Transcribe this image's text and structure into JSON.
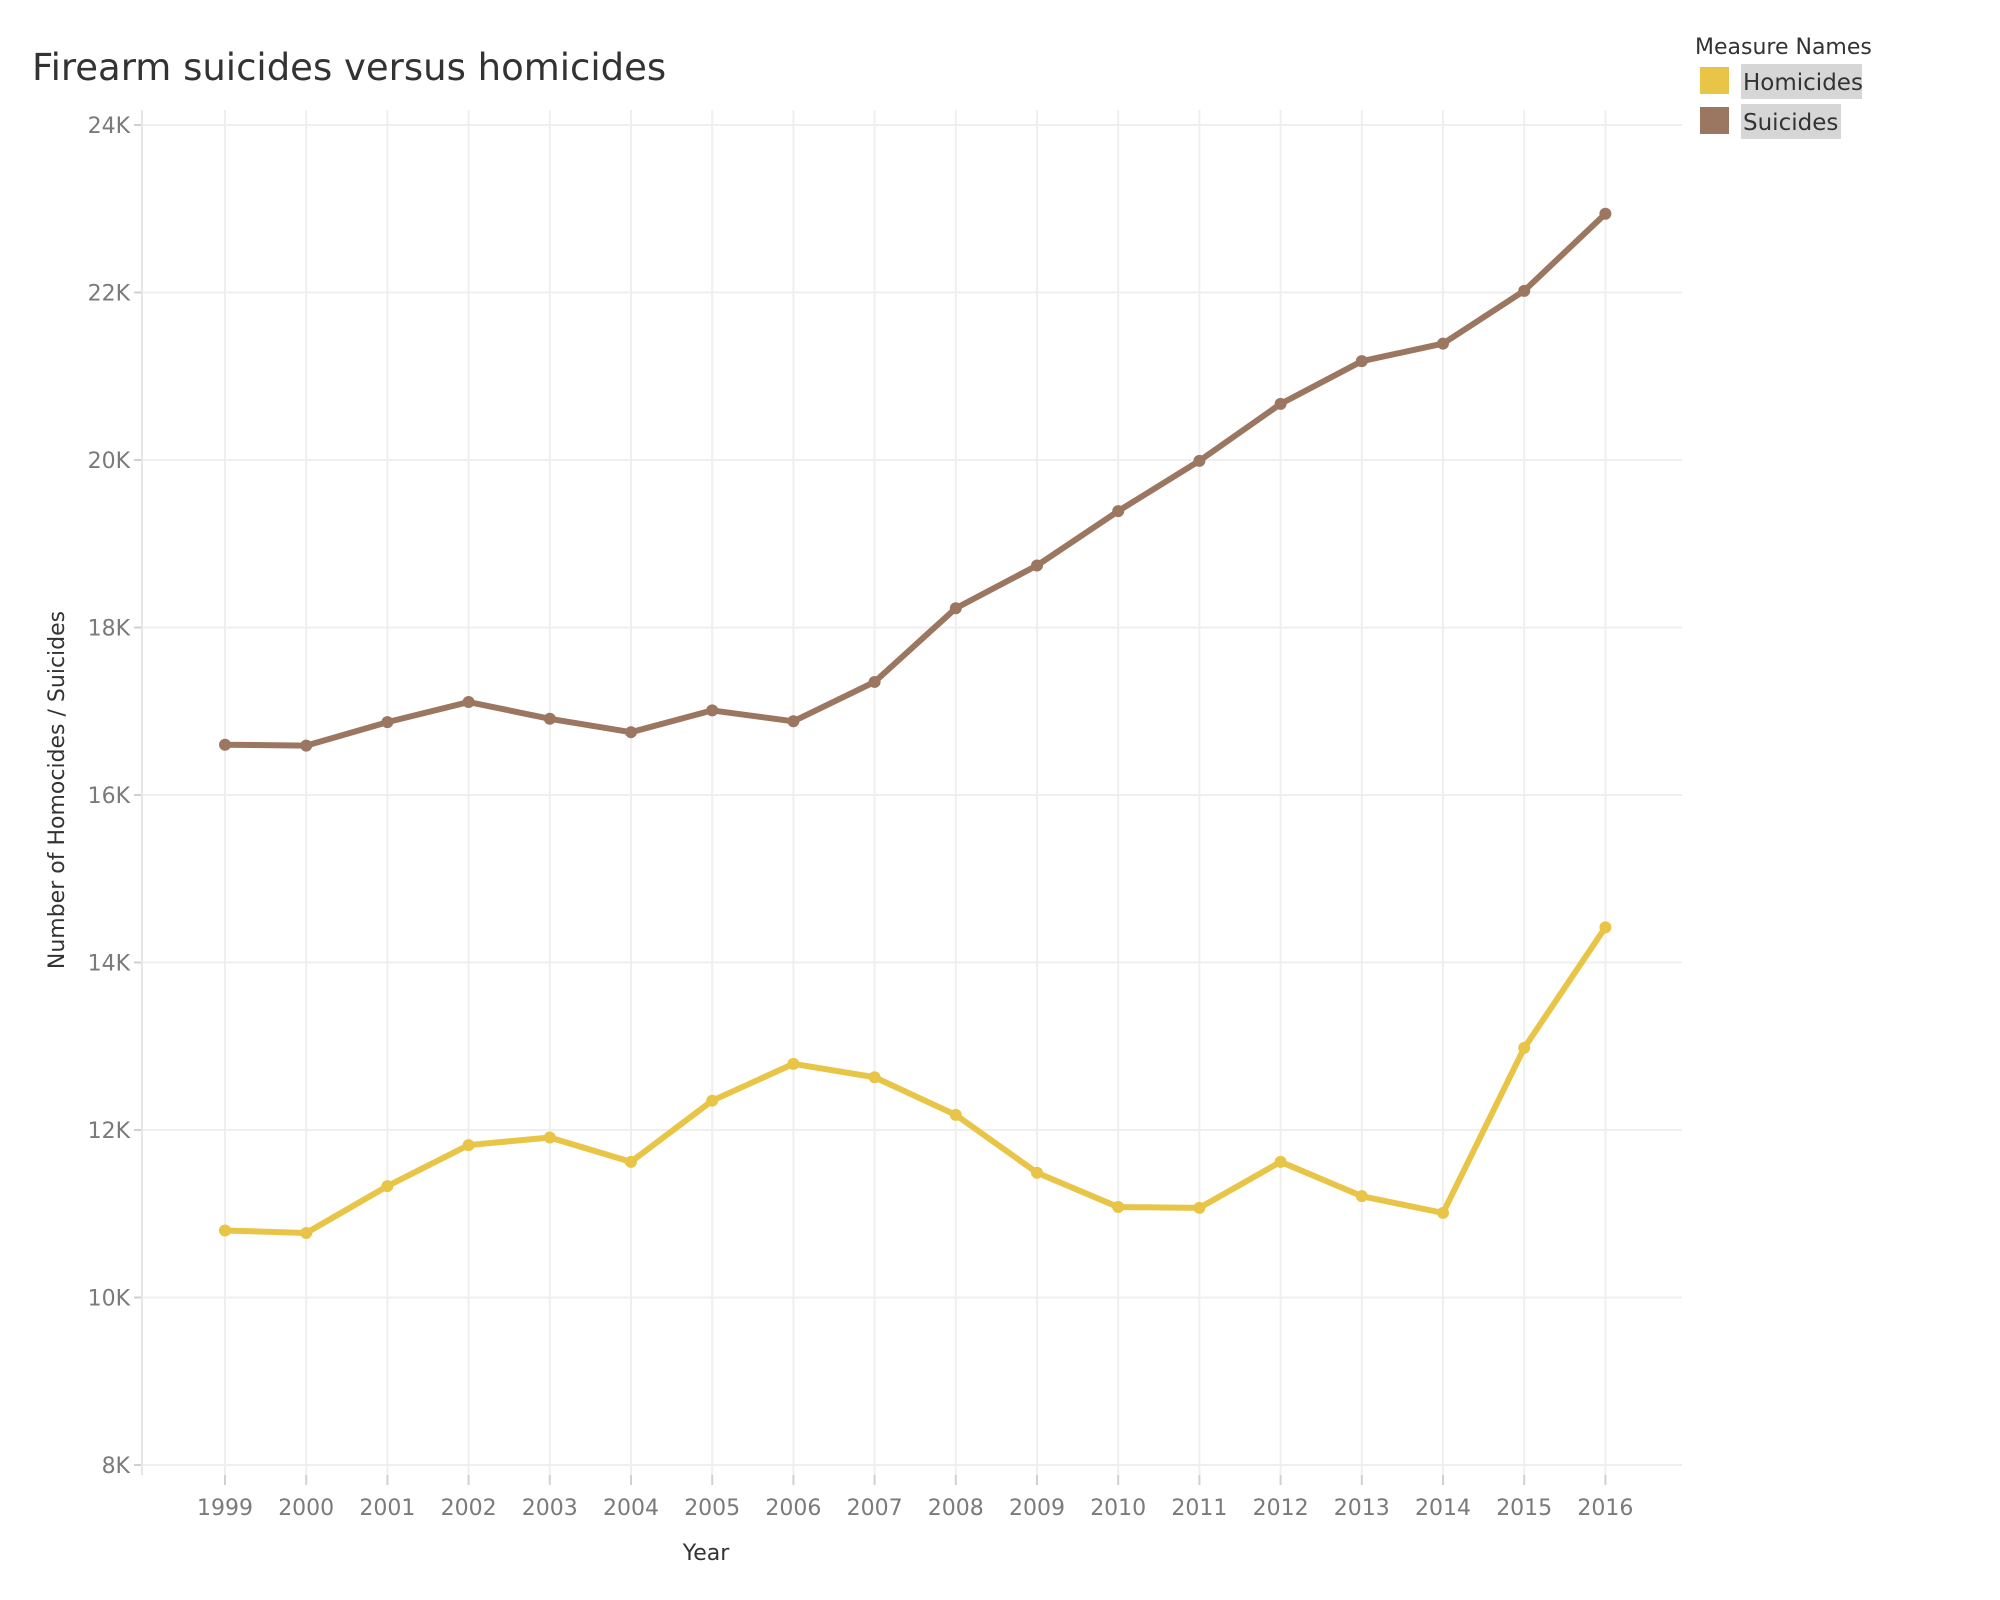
{
  "chart_data": {
    "type": "line",
    "title": "Firearm suicides versus homicides",
    "xlabel": "Year",
    "ylabel": "Number of Homocides / Suicides",
    "x": [
      1999,
      2000,
      2001,
      2002,
      2003,
      2004,
      2005,
      2006,
      2007,
      2008,
      2009,
      2010,
      2011,
      2012,
      2013,
      2014,
      2015,
      2016
    ],
    "ylim": [
      8000,
      24000
    ],
    "yticks": [
      8000,
      10000,
      12000,
      14000,
      16000,
      18000,
      20000,
      22000,
      24000
    ],
    "ytick_labels": [
      "8K",
      "10K",
      "12K",
      "14K",
      "16K",
      "18K",
      "20K",
      "22K",
      "24K"
    ],
    "grid": true,
    "legend": {
      "title": "Measure Names",
      "placement": "top-right"
    },
    "series": [
      {
        "name": "Homicides",
        "color": "#e8c547",
        "values": [
          10800,
          10770,
          11330,
          11820,
          11910,
          11620,
          12350,
          12790,
          12630,
          12180,
          11490,
          11080,
          11070,
          11620,
          11210,
          11010,
          12980,
          14420
        ]
      },
      {
        "name": "Suicides",
        "color": "#9b7660",
        "values": [
          16600,
          16590,
          16870,
          17110,
          16910,
          16750,
          17010,
          16880,
          17350,
          18230,
          18740,
          19390,
          19990,
          20670,
          21180,
          21390,
          22020,
          22940
        ]
      }
    ]
  }
}
